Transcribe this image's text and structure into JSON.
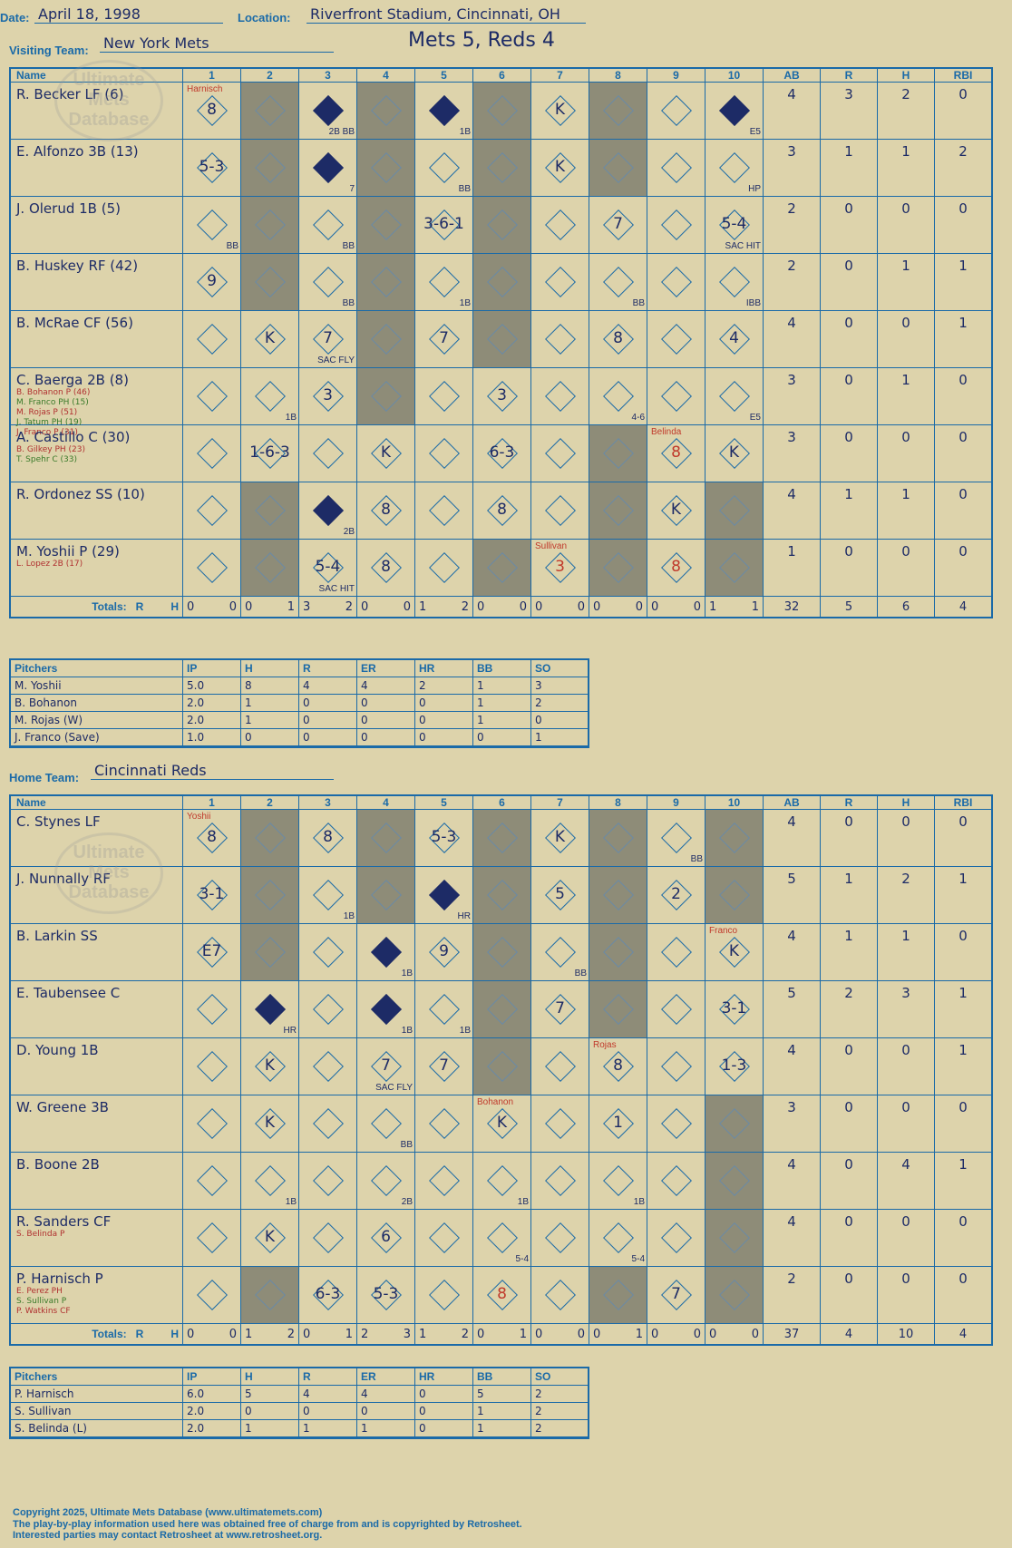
{
  "header": {
    "date_label": "Date:",
    "date": "April 18, 1998",
    "location_label": "Location:",
    "location": "Riverfront Stadium, Cincinnati, OH",
    "visiting_label": "Visiting Team:",
    "visiting_team": "New York Mets",
    "score_title": "Mets 5, Reds 4",
    "home_label": "Home Team:",
    "home_team": "Cincinnati Reds"
  },
  "columns": {
    "name": "Name",
    "innings": [
      "1",
      "2",
      "3",
      "4",
      "5",
      "6",
      "7",
      "8",
      "9",
      "10"
    ],
    "stats": [
      "AB",
      "R",
      "H",
      "RBI"
    ],
    "totals_label": "Totals:",
    "rh": "R",
    "hh": "H"
  },
  "watermark": [
    "Ultimate",
    "Mets",
    "Database"
  ],
  "visitors": [
    {
      "name": "R. Becker LF (6)",
      "subs": [],
      "stats": [
        "4",
        "3",
        "2",
        "0"
      ]
    },
    {
      "name": "E. Alfonzo 3B (13)",
      "subs": [],
      "stats": [
        "3",
        "1",
        "1",
        "2"
      ]
    },
    {
      "name": "J. Olerud 1B (5)",
      "subs": [],
      "stats": [
        "2",
        "0",
        "0",
        "0"
      ]
    },
    {
      "name": "B. Huskey RF (42)",
      "subs": [],
      "stats": [
        "2",
        "0",
        "1",
        "1"
      ]
    },
    {
      "name": "B. McRae CF (56)",
      "subs": [],
      "stats": [
        "4",
        "0",
        "0",
        "1"
      ]
    },
    {
      "name": "C. Baerga 2B (8)",
      "subs": [
        "B. Bohanon P (46)",
        "M. Franco PH (15)",
        "M. Rojas P (51)",
        "J. Tatum PH (19)",
        "J. Franco P (31)"
      ],
      "stats": [
        "3",
        "0",
        "1",
        "0"
      ]
    },
    {
      "name": "A. Castillo C (30)",
      "subs": [
        "B. Gilkey PH (23)",
        "T. Spehr C (33)"
      ],
      "stats": [
        "3",
        "0",
        "0",
        "0"
      ]
    },
    {
      "name": "R. Ordonez SS (10)",
      "subs": [],
      "stats": [
        "4",
        "1",
        "1",
        "0"
      ]
    },
    {
      "name": "M. Yoshii P (29)",
      "subs": [
        "L. Lopez 2B (17)"
      ],
      "stats": [
        "1",
        "0",
        "0",
        "0"
      ]
    }
  ],
  "visitor_cells": [
    [
      {
        "r": "8",
        "tag": "Harnisch"
      },
      {},
      {
        "sc": 1,
        "n": "2B BB"
      },
      {},
      {
        "sc": 1,
        "n": "1B"
      },
      {},
      {
        "r": "K"
      },
      {},
      {},
      {
        "sc": 1,
        "n": "E5"
      }
    ],
    [
      {
        "r": "5-3"
      },
      {},
      {
        "sc": 1,
        "n": "7"
      },
      {},
      {
        "n": "BB"
      },
      {},
      {
        "r": "K"
      },
      {},
      {},
      {
        "n": "HP"
      }
    ],
    [
      {
        "n": "BB"
      },
      {},
      {
        "n": "BB"
      },
      {},
      {
        "r": "3-6-1"
      },
      {},
      {},
      {
        "r": "7"
      },
      {},
      {
        "r": "5-4",
        "n": "SAC HIT"
      }
    ],
    [
      {
        "r": "9"
      },
      {},
      {
        "n": "BB"
      },
      {},
      {
        "n": "1B"
      },
      {},
      {},
      {
        "n": "BB"
      },
      {},
      {
        "n": "IBB"
      }
    ],
    [
      {},
      {
        "r": "K"
      },
      {
        "r": "7",
        "n": "SAC FLY"
      },
      {},
      {
        "r": "7"
      },
      {},
      {},
      {
        "r": "8"
      },
      {},
      {
        "r": "4"
      }
    ],
    [
      {},
      {
        "n": "1B"
      },
      {
        "r": "3"
      },
      {},
      {},
      {
        "r": "3"
      },
      {},
      {
        "n": "4-6"
      },
      {},
      {
        "n": "E5"
      }
    ],
    [
      {},
      {
        "r": "1-6-3"
      },
      {},
      {
        "r": "K"
      },
      {},
      {
        "r": "6-3"
      },
      {},
      {},
      {
        "r": "8",
        "red": 1,
        "tag": "Belinda"
      },
      {
        "r": "K"
      }
    ],
    [
      {},
      {},
      {
        "sc": 1,
        "n": "2B"
      },
      {
        "r": "8"
      },
      {},
      {
        "r": "8"
      },
      {},
      {},
      {
        "r": "K"
      },
      {}
    ],
    [
      {},
      {},
      {
        "r": "5-4",
        "n": "SAC HIT"
      },
      {
        "r": "8"
      },
      {},
      {},
      {
        "r": "3",
        "red": 1,
        "tag": "Sullivan"
      },
      {},
      {
        "r": "8",
        "red": 1
      },
      {}
    ]
  ],
  "visitor_totals": [
    [
      "0",
      "0"
    ],
    [
      "0",
      "1"
    ],
    [
      "3",
      "2"
    ],
    [
      "0",
      "0"
    ],
    [
      "1",
      "2"
    ],
    [
      "0",
      "0"
    ],
    [
      "0",
      "0"
    ],
    [
      "0",
      "0"
    ],
    [
      "0",
      "0"
    ],
    [
      "1",
      "1"
    ]
  ],
  "visitor_sum": [
    "32",
    "5",
    "6",
    "4"
  ],
  "visitor_pitchers": {
    "headers": [
      "Pitchers",
      "IP",
      "H",
      "R",
      "ER",
      "HR",
      "BB",
      "SO"
    ],
    "rows": [
      [
        "M. Yoshii",
        "5.0",
        "8",
        "4",
        "4",
        "2",
        "1",
        "3"
      ],
      [
        "B. Bohanon",
        "2.0",
        "1",
        "0",
        "0",
        "0",
        "1",
        "2"
      ],
      [
        "M. Rojas (W)",
        "2.0",
        "1",
        "0",
        "0",
        "0",
        "1",
        "0"
      ],
      [
        "J. Franco (Save)",
        "1.0",
        "0",
        "0",
        "0",
        "0",
        "0",
        "1"
      ]
    ]
  },
  "home": [
    {
      "name": "C. Stynes LF",
      "subs": [],
      "stats": [
        "4",
        "0",
        "0",
        "0"
      ]
    },
    {
      "name": "J. Nunnally RF",
      "subs": [],
      "stats": [
        "5",
        "1",
        "2",
        "1"
      ]
    },
    {
      "name": "B. Larkin SS",
      "subs": [],
      "stats": [
        "4",
        "1",
        "1",
        "0"
      ]
    },
    {
      "name": "E. Taubensee C",
      "subs": [],
      "stats": [
        "5",
        "2",
        "3",
        "1"
      ]
    },
    {
      "name": "D. Young 1B",
      "subs": [],
      "stats": [
        "4",
        "0",
        "0",
        "1"
      ]
    },
    {
      "name": "W. Greene 3B",
      "subs": [],
      "stats": [
        "3",
        "0",
        "0",
        "0"
      ]
    },
    {
      "name": "B. Boone 2B",
      "subs": [],
      "stats": [
        "4",
        "0",
        "4",
        "1"
      ]
    },
    {
      "name": "R. Sanders CF",
      "subs": [
        "S. Belinda P"
      ],
      "stats": [
        "4",
        "0",
        "0",
        "0"
      ]
    },
    {
      "name": "P. Harnisch P",
      "subs": [
        "E. Perez PH",
        "S. Sullivan P",
        "P. Watkins CF"
      ],
      "stats": [
        "2",
        "0",
        "0",
        "0"
      ]
    }
  ],
  "home_cells": [
    [
      {
        "r": "8",
        "tag": "Yoshii"
      },
      {},
      {
        "r": "8"
      },
      {},
      {
        "r": "5-3"
      },
      {},
      {
        "r": "K"
      },
      {},
      {
        "n": "BB"
      },
      {}
    ],
    [
      {
        "r": "3-1"
      },
      {},
      {
        "n": "1B"
      },
      {},
      {
        "sc": 1,
        "n": "HR"
      },
      {},
      {
        "r": "5"
      },
      {},
      {
        "r": "2"
      },
      {}
    ],
    [
      {
        "r": "E7"
      },
      {},
      {},
      {
        "sc": 1,
        "n": "1B"
      },
      {
        "r": "9"
      },
      {},
      {
        "n": "BB"
      },
      {},
      {},
      {
        "r": "K",
        "tag": "Franco"
      }
    ],
    [
      {},
      {
        "sc": 1,
        "n": "HR"
      },
      {},
      {
        "sc": 1,
        "n": "1B"
      },
      {
        "n": "1B"
      },
      {},
      {
        "r": "7"
      },
      {},
      {},
      {
        "r": "3-1"
      }
    ],
    [
      {},
      {
        "r": "K"
      },
      {},
      {
        "r": "7",
        "n": "SAC FLY"
      },
      {
        "r": "7"
      },
      {},
      {},
      {
        "r": "8",
        "tag": "Rojas"
      },
      {},
      {
        "r": "1-3"
      }
    ],
    [
      {},
      {
        "r": "K"
      },
      {},
      {
        "n": "BB"
      },
      {},
      {
        "r": "K",
        "tag": "Bohanon"
      },
      {},
      {
        "r": "1"
      },
      {},
      {}
    ],
    [
      {},
      {
        "n": "1B"
      },
      {},
      {
        "n": "2B"
      },
      {},
      {
        "n": "1B"
      },
      {},
      {
        "n": "1B"
      },
      {},
      {}
    ],
    [
      {},
      {
        "r": "K"
      },
      {},
      {
        "r": "6"
      },
      {},
      {
        "n": "5-4"
      },
      {},
      {
        "n": "5-4"
      },
      {},
      {}
    ],
    [
      {},
      {},
      {
        "r": "6-3"
      },
      {
        "r": "5-3"
      },
      {},
      {
        "r": "8",
        "red": 1
      },
      {},
      {},
      {
        "r": "7"
      },
      {}
    ]
  ],
  "home_totals": [
    [
      "0",
      "0"
    ],
    [
      "1",
      "2"
    ],
    [
      "0",
      "1"
    ],
    [
      "2",
      "3"
    ],
    [
      "1",
      "2"
    ],
    [
      "0",
      "1"
    ],
    [
      "0",
      "0"
    ],
    [
      "0",
      "1"
    ],
    [
      "0",
      "0"
    ],
    [
      "0",
      "0"
    ]
  ],
  "home_sum": [
    "37",
    "4",
    "10",
    "4"
  ],
  "home_pitchers": {
    "headers": [
      "Pitchers",
      "IP",
      "H",
      "R",
      "ER",
      "HR",
      "BB",
      "SO"
    ],
    "rows": [
      [
        "P. Harnisch",
        "6.0",
        "5",
        "4",
        "4",
        "0",
        "5",
        "2"
      ],
      [
        "S. Sullivan",
        "2.0",
        "0",
        "0",
        "0",
        "0",
        "1",
        "2"
      ],
      [
        "S. Belinda (L)",
        "2.0",
        "1",
        "1",
        "1",
        "0",
        "1",
        "2"
      ]
    ]
  },
  "footer": {
    "line1": "Copyright 2025, Ultimate Mets Database (www.ultimatemets.com)",
    "line2": "The play-by-play information used here was obtained free of charge from and is copyrighted by Retrosheet.",
    "line3": "Interested parties may contact Retrosheet at www.retrosheet.org."
  }
}
